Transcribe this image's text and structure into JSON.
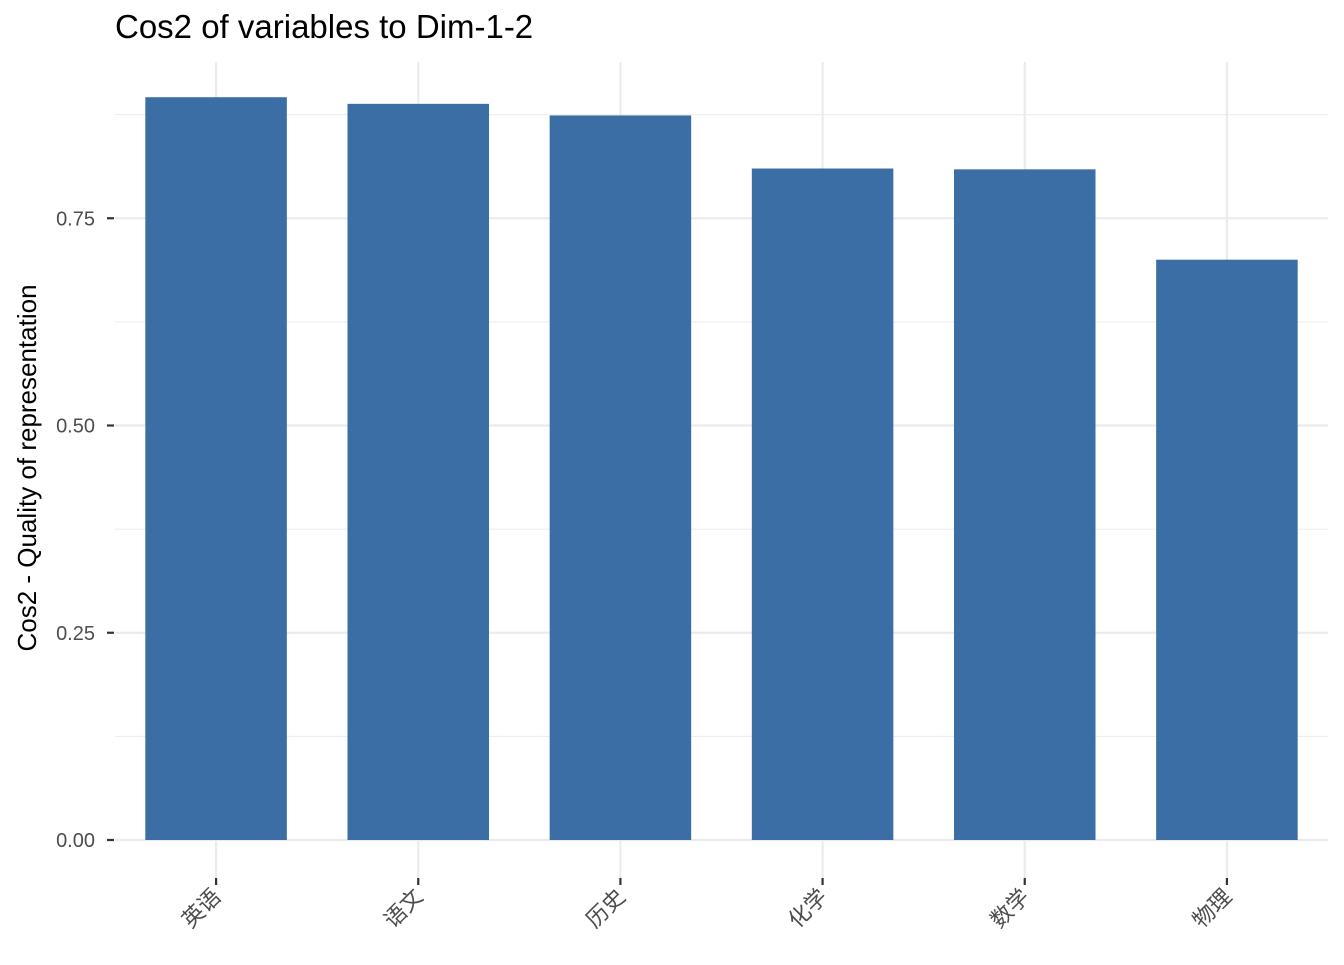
{
  "chart_data": {
    "type": "bar",
    "title": "Cos2 of variables to Dim-1-2",
    "xlabel": "",
    "ylabel": "Cos2 - Quality of representation",
    "categories": [
      "英语",
      "语文",
      "历史",
      "化学",
      "数学",
      "物理"
    ],
    "values": [
      0.896,
      0.888,
      0.874,
      0.81,
      0.809,
      0.7
    ],
    "ylim": [
      0,
      0.9
    ],
    "yticks": [
      0.0,
      0.25,
      0.5,
      0.75
    ],
    "ytick_labels": [
      "0.00",
      "0.25",
      "0.50",
      "0.75"
    ],
    "grid": true,
    "legend": "none",
    "colors": {
      "bar": "#3A6EA5",
      "grid": "#EBEBEB",
      "tick": "#333333"
    }
  }
}
